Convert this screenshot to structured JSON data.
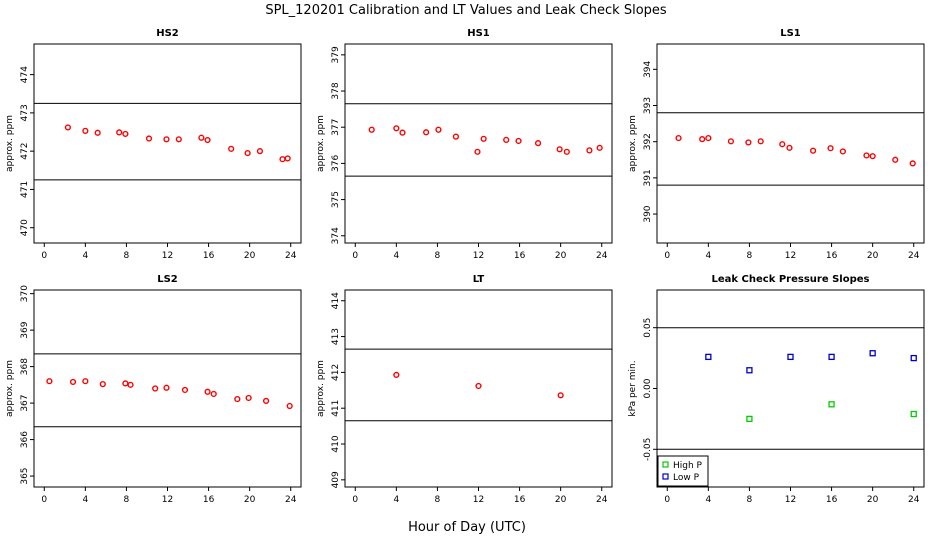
{
  "title": "SPL_120201  Calibration and LT Values and Leak Check Slopes",
  "xlabel": "Hour of Day (UTC)",
  "chart_data": [
    {
      "id": "hs2",
      "type": "scatter",
      "title": "HS2",
      "ylabel": "approx. ppm",
      "xlim": [
        -1,
        25
      ],
      "ylim": [
        469.6,
        474.8
      ],
      "xticks": [
        0,
        4,
        8,
        12,
        16,
        20,
        24
      ],
      "yticks": [
        470,
        471,
        472,
        473,
        474
      ],
      "ref_lines": [
        473.25,
        471.25
      ],
      "series": [
        {
          "name": "calibration",
          "color": "#ff0000",
          "x": [
            2.3,
            4.0,
            5.2,
            7.3,
            7.9,
            10.2,
            11.9,
            13.1,
            15.3,
            15.9,
            18.2,
            19.8,
            21.0,
            23.2,
            23.7
          ],
          "y": [
            472.62,
            472.53,
            472.48,
            472.49,
            472.45,
            472.33,
            472.31,
            472.31,
            472.35,
            472.29,
            472.06,
            471.95,
            472.0,
            471.79,
            471.81
          ]
        }
      ]
    },
    {
      "id": "hs1",
      "type": "scatter",
      "title": "HS1",
      "ylabel": "approx. ppm",
      "xlim": [
        -1,
        25
      ],
      "ylim": [
        373.8,
        379.3
      ],
      "xticks": [
        0,
        4,
        8,
        12,
        16,
        20,
        24
      ],
      "yticks": [
        374,
        375,
        376,
        377,
        378,
        379
      ],
      "ref_lines": [
        377.65,
        375.65
      ],
      "series": [
        {
          "name": "calibration",
          "color": "#ff0000",
          "x": [
            1.6,
            4.0,
            4.6,
            6.9,
            8.1,
            9.8,
            11.9,
            12.5,
            14.7,
            15.9,
            17.8,
            19.9,
            20.6,
            22.8,
            23.8
          ],
          "y": [
            376.93,
            376.97,
            376.85,
            376.86,
            376.93,
            376.74,
            376.32,
            376.68,
            376.65,
            376.62,
            376.56,
            376.39,
            376.32,
            376.36,
            376.43
          ]
        }
      ]
    },
    {
      "id": "ls1",
      "type": "scatter",
      "title": "LS1",
      "ylabel": "approx. ppm",
      "xlim": [
        -1,
        25
      ],
      "ylim": [
        389.2,
        394.7
      ],
      "xticks": [
        0,
        4,
        8,
        12,
        16,
        20,
        24
      ],
      "yticks": [
        390,
        391,
        392,
        393,
        394
      ],
      "ref_lines": [
        392.8,
        390.8
      ],
      "series": [
        {
          "name": "calibration",
          "color": "#ff0000",
          "x": [
            1.1,
            3.4,
            4.0,
            6.2,
            7.9,
            9.1,
            11.2,
            11.9,
            14.2,
            15.9,
            17.1,
            19.4,
            20.0,
            22.2,
            23.9
          ],
          "y": [
            392.1,
            392.07,
            392.1,
            392.01,
            391.98,
            392.01,
            391.93,
            391.83,
            391.75,
            391.82,
            391.73,
            391.62,
            391.6,
            391.5,
            391.4
          ]
        }
      ]
    },
    {
      "id": "ls2",
      "type": "scatter",
      "title": "LS2",
      "ylabel": "approx. ppm",
      "xlim": [
        -1,
        25
      ],
      "ylim": [
        364.7,
        370.1
      ],
      "xticks": [
        0,
        4,
        8,
        12,
        16,
        20,
        24
      ],
      "yticks": [
        365,
        366,
        367,
        368,
        369,
        370
      ],
      "ref_lines": [
        368.35,
        366.35
      ],
      "series": [
        {
          "name": "calibration",
          "color": "#ff0000",
          "x": [
            0.5,
            2.8,
            4.0,
            5.7,
            7.9,
            8.4,
            10.8,
            11.9,
            13.7,
            15.9,
            16.5,
            18.8,
            19.9,
            21.6,
            23.9
          ],
          "y": [
            367.6,
            367.58,
            367.6,
            367.52,
            367.54,
            367.5,
            367.4,
            367.42,
            367.36,
            367.31,
            367.25,
            367.11,
            367.14,
            367.06,
            366.92
          ]
        }
      ]
    },
    {
      "id": "lt",
      "type": "scatter",
      "title": "LT",
      "ylabel": "approx. ppm",
      "xlim": [
        -1,
        25
      ],
      "ylim": [
        408.8,
        414.3
      ],
      "xticks": [
        0,
        4,
        8,
        12,
        16,
        20,
        24
      ],
      "yticks": [
        409,
        410,
        411,
        412,
        413,
        414
      ],
      "ref_lines": [
        412.65,
        410.65
      ],
      "series": [
        {
          "name": "LT",
          "color": "#ff0000",
          "x": [
            4.0,
            12.0,
            20.0
          ],
          "y": [
            411.93,
            411.62,
            411.36
          ]
        }
      ]
    },
    {
      "id": "leak",
      "type": "scatter",
      "title": "Leak Check Pressure Slopes",
      "ylabel": "kPa per min.",
      "xlim": [
        -1,
        25
      ],
      "ylim": [
        -0.081,
        0.081
      ],
      "xticks": [
        0,
        4,
        8,
        12,
        16,
        20,
        24
      ],
      "yticks": [
        -0.05,
        0.0,
        0.05
      ],
      "ytick_labels": [
        "-0.05",
        "0.00",
        "0.05"
      ],
      "ref_lines": [
        0.05,
        -0.05
      ],
      "legend": {
        "position": "bottom-left",
        "entries": [
          {
            "label": "High P",
            "color": "#00cc00"
          },
          {
            "label": "Low P",
            "color": "#0000cc"
          }
        ]
      },
      "series": [
        {
          "name": "High P",
          "color": "#00cc00",
          "x": [
            8,
            16,
            24
          ],
          "y": [
            -0.025,
            -0.013,
            -0.021
          ]
        },
        {
          "name": "Low P",
          "color": "#0000cc",
          "x": [
            4,
            8,
            12,
            16,
            20,
            24
          ],
          "y": [
            0.026,
            0.015,
            0.026,
            0.026,
            0.029,
            0.025
          ]
        }
      ]
    }
  ]
}
